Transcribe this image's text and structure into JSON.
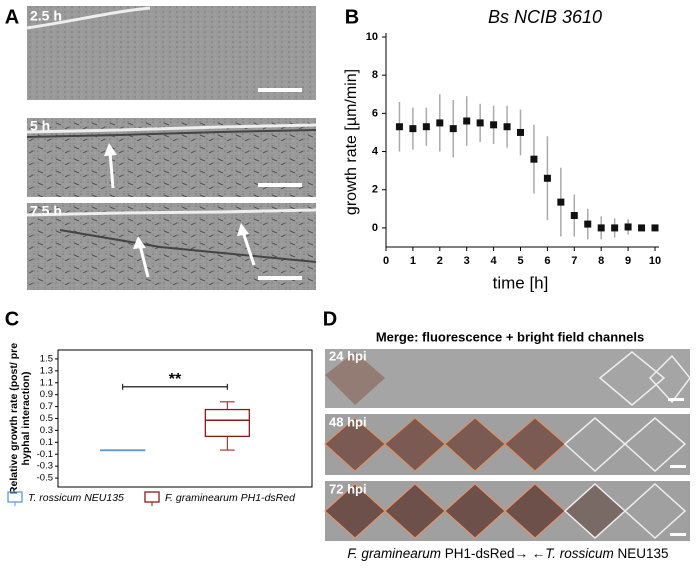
{
  "panel_labels": [
    "A",
    "B",
    "C",
    "D"
  ],
  "panel_a": {
    "labels": [
      "2.5 h",
      "5 h",
      "7.5 h"
    ]
  },
  "panel_d": {
    "title": "Merge: fluorescence + bright field channels",
    "labels": [
      "24 hpi",
      "48 hpi",
      "72 hpi"
    ],
    "caption": [
      "F. graminearum",
      " PH1-dsRed→ ←",
      "T. rossicum",
      " NEU135"
    ]
  },
  "chart_data": [
    {
      "type": "scatter",
      "title": "Bs NCIB 3610",
      "xlabel": "time [h]",
      "ylabel": "growth rate [µm/min]",
      "xlim": [
        0,
        10
      ],
      "ylim": [
        -1,
        10
      ],
      "xticks": [
        0,
        1,
        2,
        3,
        4,
        5,
        6,
        7,
        8,
        9,
        10
      ],
      "yticks": [
        0,
        2,
        4,
        6,
        8,
        10
      ],
      "series": [
        {
          "color": "#111111",
          "error_color": "#aaaaaa",
          "x": [
            0.5,
            1,
            1.5,
            2,
            2.5,
            3,
            3.5,
            4,
            4.5,
            5,
            5.5,
            6,
            6.5,
            7,
            7.5,
            8,
            8.5,
            9,
            9.5,
            10
          ],
          "values": [
            5.3,
            5.2,
            5.3,
            5.5,
            5.2,
            5.6,
            5.5,
            5.4,
            5.3,
            5.0,
            3.6,
            2.6,
            1.35,
            0.65,
            0.2,
            0.0,
            0.0,
            0.05,
            0.0,
            0.0
          ],
          "errors": [
            1.3,
            1.1,
            1.0,
            1.5,
            1.5,
            1.3,
            1.0,
            1.0,
            1.1,
            1.2,
            1.8,
            2.2,
            1.8,
            1.1,
            0.8,
            0.6,
            0.5,
            0.4,
            0.0,
            0.0
          ]
        }
      ]
    },
    {
      "type": "box",
      "ylabel": [
        "Relative growth rate  (post/ pre",
        "hyphal interaction)"
      ],
      "ylim": [
        -0.65,
        1.65
      ],
      "yticks": [
        -0.5,
        -0.3,
        -0.1,
        0.1,
        0.3,
        0.5,
        0.7,
        0.9,
        1.1,
        1.3,
        1.5
      ],
      "annotation": "**",
      "series": [
        {
          "name": "T. rossicum NEU135",
          "color": "#5b9bd5",
          "min": -0.03,
          "q1": -0.03,
          "median": -0.03,
          "q3": -0.03,
          "max": -0.03
        },
        {
          "name": "F. graminearum PH1-dsRed",
          "color": "#8b1a1a",
          "min": -0.03,
          "q1": 0.2,
          "median": 0.47,
          "q3": 0.65,
          "max": 0.78
        }
      ]
    }
  ]
}
